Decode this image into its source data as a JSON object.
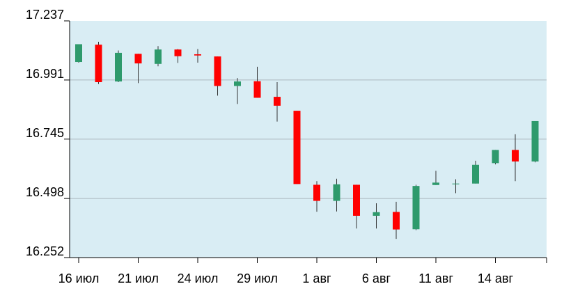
{
  "chart_data": {
    "type": "candlestick",
    "title": "",
    "xlabel": "",
    "ylabel": "",
    "ylim": [
      16.252,
      17.237
    ],
    "yticks": [
      "17.237",
      "16.991",
      "16.745",
      "16.498",
      "16.252"
    ],
    "xticks": [
      {
        "label": "16 июл",
        "index": 0
      },
      {
        "label": "21 июл",
        "index": 3
      },
      {
        "label": "24 июл",
        "index": 6
      },
      {
        "label": "29 июл",
        "index": 9
      },
      {
        "label": "1 авг",
        "index": 12
      },
      {
        "label": "6 авг",
        "index": 15
      },
      {
        "label": "11 авг",
        "index": 18
      },
      {
        "label": "14 авг",
        "index": 21
      }
    ],
    "grid": true,
    "colors": {
      "up": "#2e9a6c",
      "down": "#ff0000",
      "background": "#d9edf4",
      "grid": "#aab7be"
    },
    "candles": [
      {
        "open": 17.066,
        "close": 17.14,
        "high": 17.14,
        "low": 17.063
      },
      {
        "open": 17.138,
        "close": 16.982,
        "high": 17.15,
        "low": 16.974
      },
      {
        "open": 16.985,
        "close": 17.104,
        "high": 17.114,
        "low": 16.982
      },
      {
        "open": 17.1,
        "close": 17.06,
        "high": 17.1,
        "low": 16.978
      },
      {
        "open": 17.058,
        "close": 17.118,
        "high": 17.132,
        "low": 17.048
      },
      {
        "open": 17.118,
        "close": 17.09,
        "high": 17.12,
        "low": 17.062
      },
      {
        "open": 17.098,
        "close": 17.093,
        "high": 17.12,
        "low": 17.063
      },
      {
        "open": 17.089,
        "close": 16.966,
        "high": 17.089,
        "low": 16.926
      },
      {
        "open": 16.966,
        "close": 16.985,
        "high": 16.999,
        "low": 16.891
      },
      {
        "open": 16.986,
        "close": 16.917,
        "high": 17.046,
        "low": 16.917
      },
      {
        "open": 16.921,
        "close": 16.884,
        "high": 16.982,
        "low": 16.818
      },
      {
        "open": 16.863,
        "close": 16.558,
        "high": 16.863,
        "low": 16.558
      },
      {
        "open": 16.555,
        "close": 16.488,
        "high": 16.57,
        "low": 16.443
      },
      {
        "open": 16.488,
        "close": 16.557,
        "high": 16.58,
        "low": 16.444
      },
      {
        "open": 16.555,
        "close": 16.426,
        "high": 16.555,
        "low": 16.373
      },
      {
        "open": 16.426,
        "close": 16.441,
        "high": 16.478,
        "low": 16.373
      },
      {
        "open": 16.442,
        "close": 16.369,
        "high": 16.484,
        "low": 16.33
      },
      {
        "open": 16.37,
        "close": 16.55,
        "high": 16.555,
        "low": 16.366
      },
      {
        "open": 16.554,
        "close": 16.564,
        "high": 16.613,
        "low": 16.554
      },
      {
        "open": 16.56,
        "close": 16.56,
        "high": 16.578,
        "low": 16.52
      },
      {
        "open": 16.56,
        "close": 16.638,
        "high": 16.655,
        "low": 16.56
      },
      {
        "open": 16.645,
        "close": 16.7,
        "high": 16.7,
        "low": 16.64
      },
      {
        "open": 16.7,
        "close": 16.652,
        "high": 16.765,
        "low": 16.57
      },
      {
        "open": 16.652,
        "close": 16.82,
        "high": 16.82,
        "low": 16.648
      }
    ]
  }
}
